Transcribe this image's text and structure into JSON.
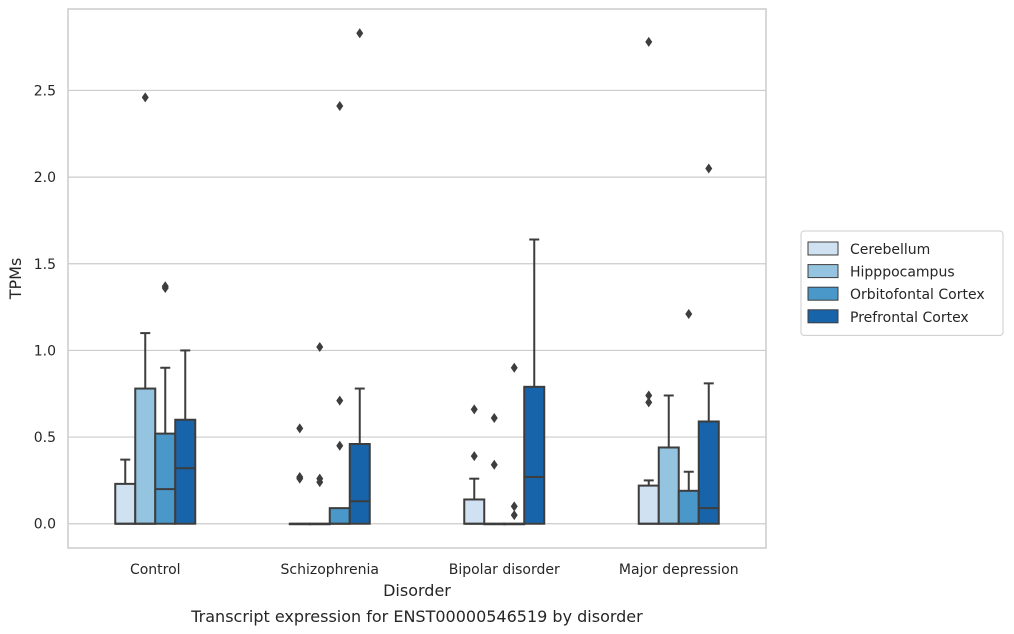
{
  "chart_data": {
    "type": "boxplot",
    "caption": "Transcript expression for ENST00000546519 by disorder",
    "xlabel": "Disorder",
    "ylabel": "TPMs",
    "ylim": [
      -0.14,
      2.97
    ],
    "yticks": [
      0.0,
      0.5,
      1.0,
      1.5,
      2.0,
      2.5
    ],
    "ytick_labels": [
      "0.0",
      "0.5",
      "1.0",
      "1.5",
      "2.0",
      "2.5"
    ],
    "grid": "horizontal",
    "legend_position": "right",
    "categories": [
      "Control",
      "Schizophrenia",
      "Bipolar disorder",
      "Major depression"
    ],
    "series": [
      {
        "name": "Cerebellum",
        "color": "#d0e1f2",
        "boxes": [
          {
            "whislo": 0.0,
            "q1": 0.0,
            "med": 0.0,
            "q3": 0.23,
            "whishi": 0.37,
            "fliers": []
          },
          {
            "whislo": 0.0,
            "q1": 0.0,
            "med": 0.0,
            "q3": 0.0,
            "whishi": 0.0,
            "fliers": [
              0.27,
              0.26,
              0.55
            ]
          },
          {
            "whislo": 0.0,
            "q1": 0.0,
            "med": 0.0,
            "q3": 0.14,
            "whishi": 0.26,
            "fliers": [
              0.39,
              0.66
            ]
          },
          {
            "whislo": 0.0,
            "q1": 0.0,
            "med": 0.0,
            "q3": 0.22,
            "whishi": 0.25,
            "fliers": [
              0.7,
              0.74,
              2.78
            ]
          }
        ]
      },
      {
        "name": "Hipppocampus",
        "color": "#94c4df",
        "boxes": [
          {
            "whislo": 0.0,
            "q1": 0.0,
            "med": 0.0,
            "q3": 0.78,
            "whishi": 1.1,
            "fliers": [
              2.46
            ]
          },
          {
            "whislo": 0.0,
            "q1": 0.0,
            "med": 0.0,
            "q3": 0.0,
            "whishi": 0.0,
            "fliers": [
              0.24,
              0.26,
              1.02
            ]
          },
          {
            "whislo": 0.0,
            "q1": 0.0,
            "med": 0.0,
            "q3": 0.0,
            "whishi": 0.0,
            "fliers": [
              0.34,
              0.61
            ]
          },
          {
            "whislo": 0.0,
            "q1": 0.0,
            "med": 0.0,
            "q3": 0.44,
            "whishi": 0.74,
            "fliers": []
          }
        ]
      },
      {
        "name": "Orbitofontal Cortex",
        "color": "#4a98c9",
        "boxes": [
          {
            "whislo": 0.0,
            "q1": 0.0,
            "med": 0.2,
            "q3": 0.52,
            "whishi": 0.9,
            "fliers": [
              1.36,
              1.37
            ]
          },
          {
            "whislo": 0.0,
            "q1": 0.0,
            "med": 0.0,
            "q3": 0.09,
            "whishi": 0.09,
            "fliers": [
              0.45,
              0.71,
              2.41
            ]
          },
          {
            "whislo": 0.0,
            "q1": 0.0,
            "med": 0.0,
            "q3": 0.0,
            "whishi": 0.0,
            "fliers": [
              0.05,
              0.1,
              0.9
            ]
          },
          {
            "whislo": 0.0,
            "q1": 0.0,
            "med": 0.0,
            "q3": 0.19,
            "whishi": 0.3,
            "fliers": [
              1.21
            ]
          }
        ]
      },
      {
        "name": "Prefrontal Cortex",
        "color": "#1764ab",
        "boxes": [
          {
            "whislo": 0.0,
            "q1": 0.0,
            "med": 0.32,
            "q3": 0.6,
            "whishi": 1.0,
            "fliers": []
          },
          {
            "whislo": 0.0,
            "q1": 0.0,
            "med": 0.13,
            "q3": 0.46,
            "whishi": 0.78,
            "fliers": [
              2.83
            ]
          },
          {
            "whislo": 0.0,
            "q1": 0.0,
            "med": 0.27,
            "q3": 0.79,
            "whishi": 1.64,
            "fliers": []
          },
          {
            "whislo": 0.0,
            "q1": 0.0,
            "med": 0.09,
            "q3": 0.59,
            "whishi": 0.81,
            "fliers": [
              2.05
            ]
          }
        ]
      }
    ]
  }
}
